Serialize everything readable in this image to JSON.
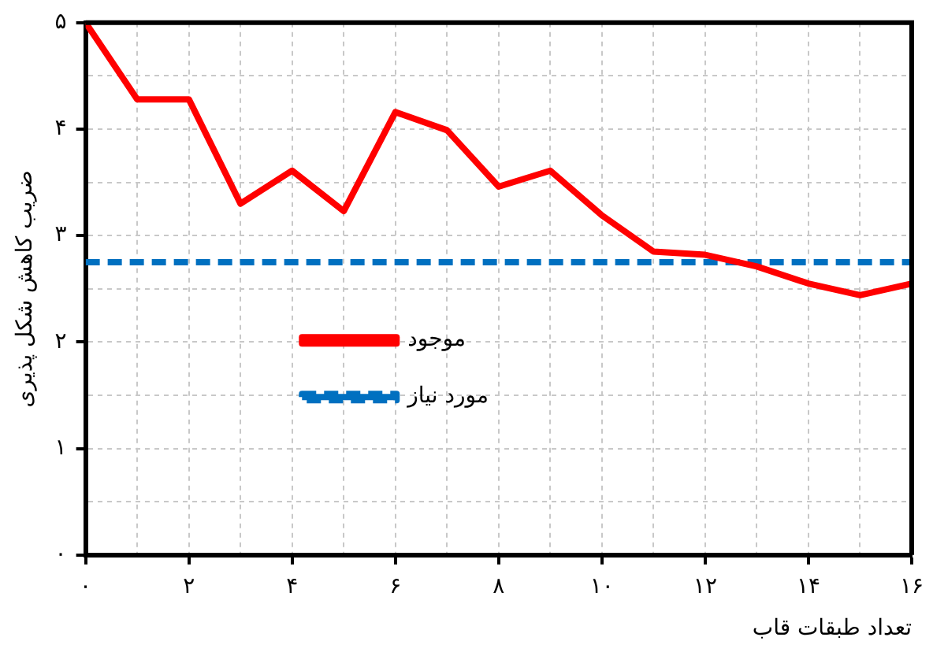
{
  "chart_data": {
    "type": "line",
    "xlabel": "تعداد طبقات قاب",
    "ylabel": "ضریب کاهش شکل پذیری",
    "x": [
      0,
      1,
      2,
      3,
      4,
      5,
      6,
      7,
      8,
      9,
      10,
      11,
      12,
      13,
      14,
      15,
      16
    ],
    "series": [
      {
        "name": "موجود",
        "color": "#ff0000",
        "line_style": "solid",
        "values": [
          5,
          4.28,
          4.28,
          3.3,
          3.61,
          3.23,
          4.16,
          3.99,
          3.46,
          3.61,
          3.19,
          2.85,
          2.82,
          2.71,
          2.55,
          2.44,
          2.55
        ]
      },
      {
        "name": "مورد نیاز",
        "color": "#0070c0",
        "line_style": "dashed",
        "x": [
          0,
          16
        ],
        "values": [
          2.75,
          2.75
        ]
      }
    ],
    "xlim": [
      0,
      16
    ],
    "xticks": [
      {
        "value": 0,
        "label": "۰"
      },
      {
        "value": 1,
        "label": null
      },
      {
        "value": 2,
        "label": "۲"
      },
      {
        "value": 3,
        "label": null
      },
      {
        "value": 4,
        "label": "۴"
      },
      {
        "value": 5,
        "label": null
      },
      {
        "value": 6,
        "label": "۶"
      },
      {
        "value": 7,
        "label": null
      },
      {
        "value": 8,
        "label": "۸"
      },
      {
        "value": 9,
        "label": null
      },
      {
        "value": 10,
        "label": "۱۰"
      },
      {
        "value": 11,
        "label": null
      },
      {
        "value": 12,
        "label": "۱۲"
      },
      {
        "value": 13,
        "label": null
      },
      {
        "value": 14,
        "label": "۱۴"
      },
      {
        "value": 15,
        "label": null
      },
      {
        "value": 16,
        "label": "۱۶"
      }
    ],
    "ylim": [
      0,
      5
    ],
    "yticks": [
      {
        "value": 0,
        "label": "۰"
      },
      {
        "value": 0.5,
        "label": null
      },
      {
        "value": 1,
        "label": "۱"
      },
      {
        "value": 1.5,
        "label": null
      },
      {
        "value": 2,
        "label": "۲"
      },
      {
        "value": 2.5,
        "label": null
      },
      {
        "value": 3,
        "label": "۳"
      },
      {
        "value": 3.5,
        "label": null
      },
      {
        "value": 4,
        "label": "۴"
      },
      {
        "value": 4.5,
        "label": null
      },
      {
        "value": 5,
        "label": "۵"
      }
    ],
    "grid": true,
    "legend": "center left",
    "marker": "none"
  }
}
